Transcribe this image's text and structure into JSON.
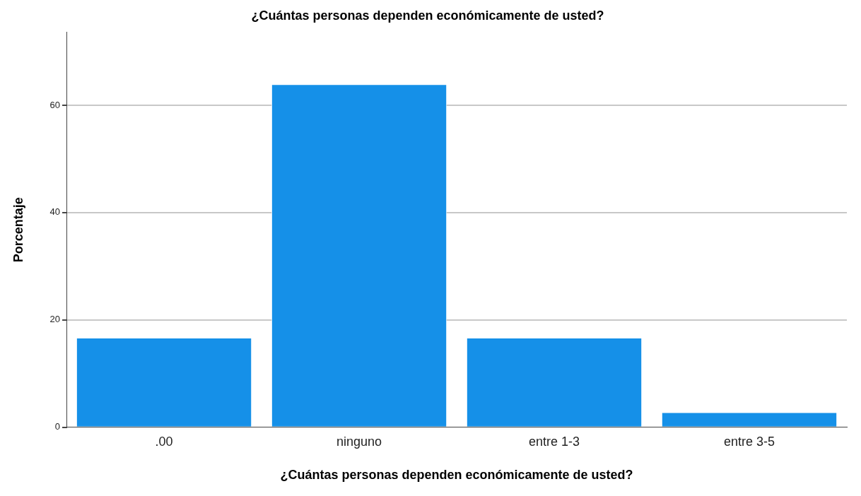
{
  "chart_data": {
    "type": "bar",
    "title": "¿Cuántas personas dependen económicamente de usted?",
    "xlabel": "¿Cuántas personas dependen económicamente de usted?",
    "ylabel": "Porcentaje",
    "categories": [
      ".00",
      "ninguno",
      "entre 1-3",
      "entre 3-5"
    ],
    "values": [
      16.7,
      63.9,
      16.7,
      2.8
    ],
    "color": "#1590e8",
    "ylim": [
      0,
      73.6
    ],
    "yticks": [
      0,
      20,
      40,
      60
    ],
    "grid": "y",
    "legend": false
  }
}
